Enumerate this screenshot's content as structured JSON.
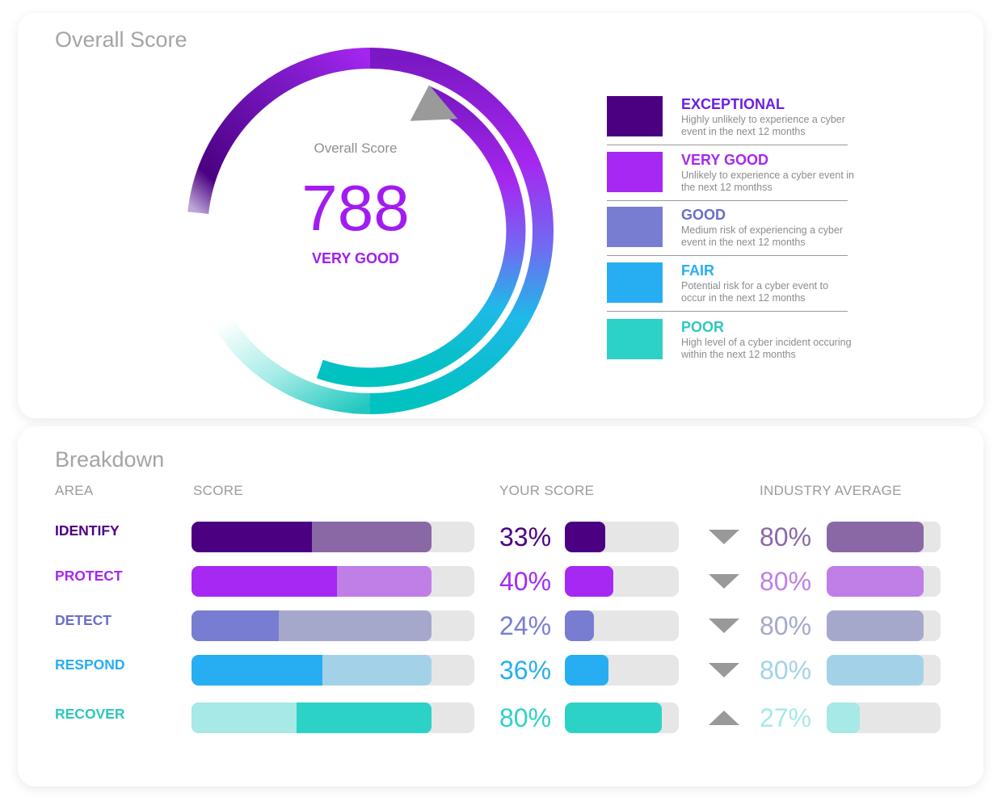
{
  "overall": {
    "title": "Overall Score",
    "gauge_label": "Overall Score",
    "score": "788",
    "rating": "VERY GOOD",
    "score_fraction": 0.72
  },
  "legend": [
    {
      "title": "EXCEPTIONAL",
      "desc": "Highly unlikely to experience a cyber event in the next 12 months",
      "color": "#4b0082",
      "title_color": "#6b1ee0"
    },
    {
      "title": "VERY GOOD",
      "desc": "Unlikely to experience a cyber event in the next 12 monthss",
      "color": "#a628f2",
      "title_color": "#a628f2"
    },
    {
      "title": "GOOD",
      "desc": "Medium risk of experiencing a cyber event in the next 12 months",
      "color": "#787dd1",
      "title_color": "#6a6ec8"
    },
    {
      "title": "FAIR",
      "desc": "Potential risk for a cyber event to occur in the next 12 months",
      "color": "#27aef2",
      "title_color": "#27aef2"
    },
    {
      "title": "POOR",
      "desc": "High level of a cyber incident occuring within the next 12 months",
      "color": "#2dd2c6",
      "title_color": "#2dc8bd"
    }
  ],
  "breakdown": {
    "title": "Breakdown",
    "headers": {
      "area": "AREA",
      "score": "SCORE",
      "your_score": "YOUR SCORE",
      "industry": "INDUSTRY AVERAGE"
    },
    "rows": [
      {
        "area": "IDENTIFY",
        "your_score": "33%",
        "your_value": 33,
        "industry": "80%",
        "industry_value": 80,
        "trend": "down",
        "color": "#4b0082",
        "light": "#8a68a6",
        "label_color": "#4b0082",
        "industry_text": "#8a68a6"
      },
      {
        "area": "PROTECT",
        "your_score": "40%",
        "your_value": 40,
        "industry": "80%",
        "industry_value": 80,
        "trend": "down",
        "color": "#a628f2",
        "light": "#bf7fe6",
        "label_color": "#a628f2",
        "industry_text": "#bf7fe6"
      },
      {
        "area": "DETECT",
        "your_score": "24%",
        "your_value": 24,
        "industry": "80%",
        "industry_value": 80,
        "trend": "down",
        "color": "#787dd1",
        "light": "#a6a8cb",
        "label_color": "#6a6ec8",
        "industry_text": "#a6a8cb"
      },
      {
        "area": "RESPOND",
        "your_score": "36%",
        "your_value": 36,
        "industry": "80%",
        "industry_value": 80,
        "trend": "down",
        "color": "#27aef2",
        "light": "#a3d2e8",
        "label_color": "#27aef2",
        "industry_text": "#a3d2e8"
      },
      {
        "area": "RECOVER",
        "your_score": "80%",
        "your_value": 80,
        "industry": "27%",
        "industry_value": 27,
        "trend": "up",
        "color": "#2dd2c6",
        "light": "#a6e9e6",
        "label_color": "#2dc8bd",
        "industry_text": "#a6e9e6"
      }
    ]
  }
}
